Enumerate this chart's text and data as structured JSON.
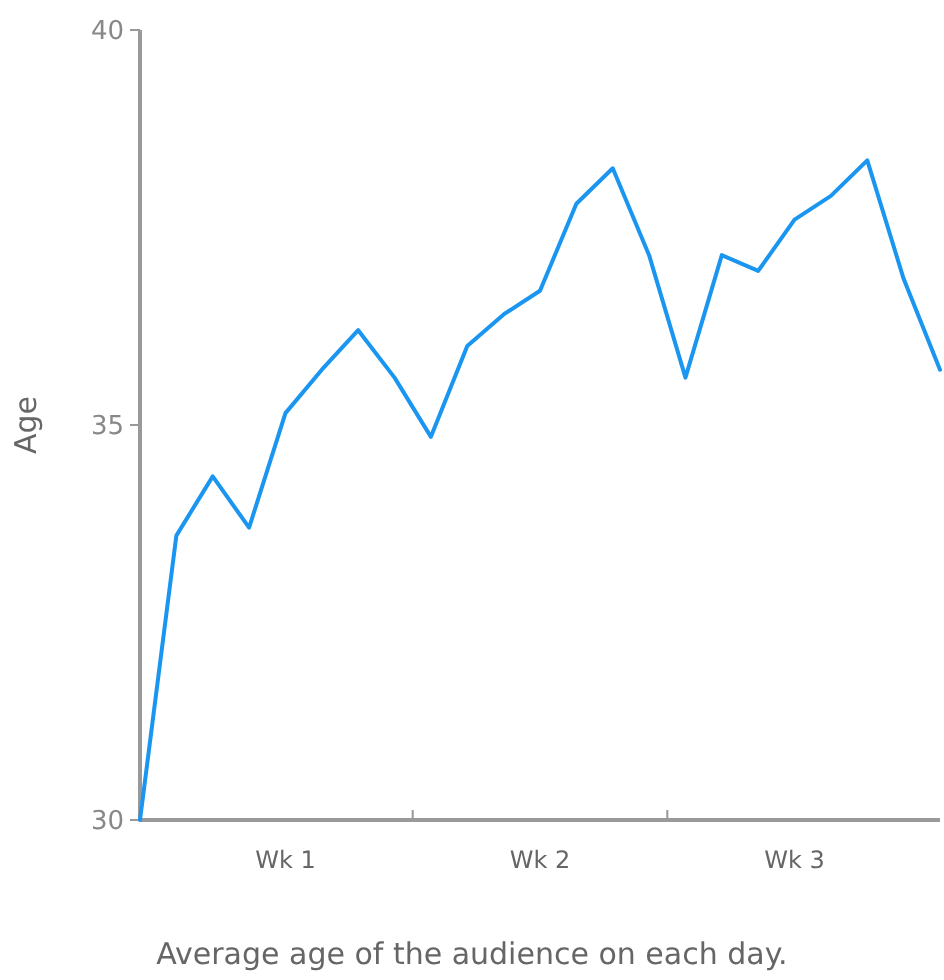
{
  "chart_data": {
    "type": "line",
    "ylabel": "Age",
    "annotations": [
      "Average age of the audience on each day."
    ],
    "categories": [
      null,
      null,
      null,
      null,
      "Wk 1",
      null,
      null,
      null,
      null,
      null,
      null,
      "Wk 2",
      null,
      null,
      null,
      null,
      null,
      null,
      "Wk 3",
      null,
      null,
      null,
      null
    ],
    "series": [
      {
        "color": "#1a96f0",
        "values": [
          30.0,
          33.6,
          34.35,
          33.7,
          35.15,
          35.7,
          36.2,
          35.6,
          34.85,
          36.0,
          36.4,
          36.7,
          37.8,
          38.25,
          37.15,
          35.6,
          37.15,
          36.95,
          37.6,
          37.9,
          38.35,
          36.85,
          35.7
        ]
      }
    ],
    "ylim": [
      30,
      40
    ],
    "yticks": [
      30,
      35,
      40
    ],
    "grid": false,
    "marker": "none",
    "line_style": "solid"
  }
}
